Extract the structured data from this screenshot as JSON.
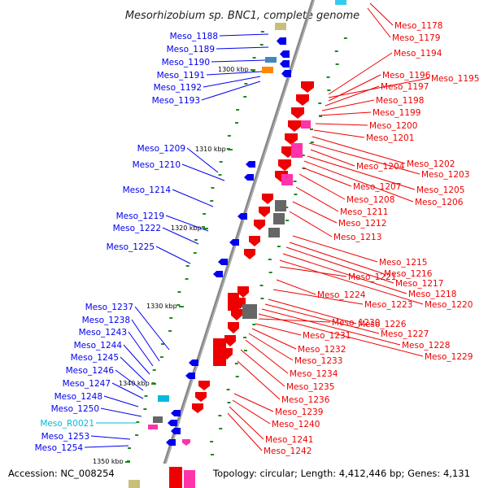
{
  "map": {
    "title": "Mesorhizobium sp. BNC1, complete genome",
    "accession": "Accession: NC_008254",
    "summary": "Topology: circular; Length: 4,412,446 bp; Genes: 4,131",
    "colors": {
      "leading": "#0000ee",
      "lagging": "#ee0000",
      "rna": "#00bbdd",
      "backbone": "#888888",
      "tick": "#228822",
      "magenta": "#ff33aa",
      "gray": "#666666",
      "orange": "#ff8800",
      "khaki": "#c8bf7a",
      "cyan_feature": "#33ccee",
      "steel": "#4488bb"
    },
    "kbp_labels": [
      "1300 kbp",
      "1310 kbp",
      "1320 kbp",
      "1330 kbp",
      "1340 kbp",
      "1350 kbp"
    ],
    "left_labels": [
      "Meso_1188",
      "Meso_1189",
      "Meso_1190",
      "Meso_1191",
      "Meso_1192",
      "Meso_1193",
      "Meso_1209",
      "Meso_1210",
      "Meso_1214",
      "Meso_1219",
      "Meso_1222",
      "Meso_1225",
      "Meso_1237",
      "Meso_1238",
      "Meso_1243",
      "Meso_1244",
      "Meso_1245",
      "Meso_1246",
      "Meso_1247",
      "Meso_1248",
      "Meso_1250",
      "Meso_R0021",
      "Meso_1253",
      "Meso_1254"
    ],
    "right_labels": [
      "Meso_1178",
      "Meso_1179",
      "Meso_1194",
      "Meso_1195",
      "Meso_1196",
      "Meso_1197",
      "Meso_1198",
      "Meso_1199",
      "Meso_1200",
      "Meso_1201",
      "Meso_1202",
      "Meso_1203",
      "Meso_1204",
      "Meso_1205",
      "Meso_1206",
      "Meso_1207",
      "Meso_1208",
      "Meso_1211",
      "Meso_1212",
      "Meso_1213",
      "Meso_1215",
      "Meso_1216",
      "Meso_1217",
      "Meso_1218",
      "Meso_1220",
      "Meso_1221",
      "Meso_1223",
      "Meso_1224",
      "Meso_1226",
      "Meso_1227",
      "Meso_1228",
      "Meso_1229",
      "Meso_1230",
      "Meso_1231",
      "Meso_1232",
      "Meso_1233",
      "Meso_1234",
      "Meso_1235",
      "Meso_1236",
      "Meso_1239",
      "Meso_1240",
      "Meso_1241",
      "Meso_1242"
    ]
  }
}
